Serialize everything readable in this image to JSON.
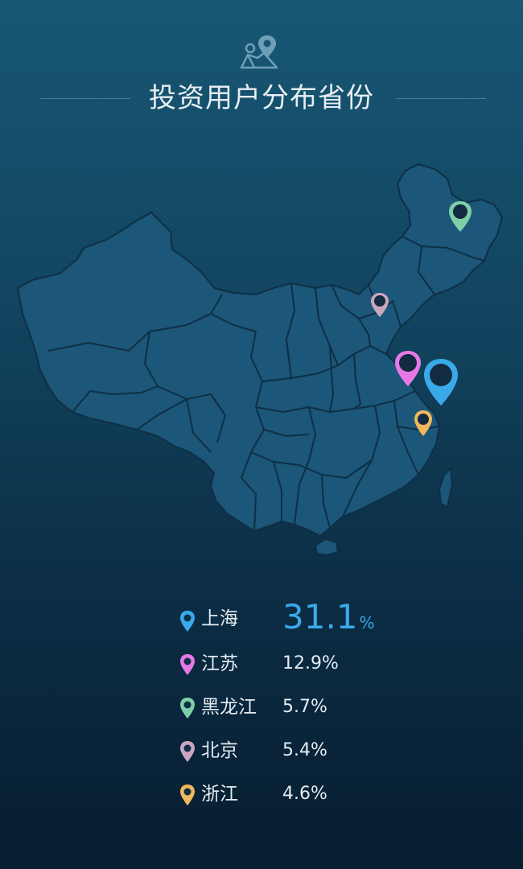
{
  "header": {
    "icon": "map-pin-icon",
    "title": "投资用户分布省份"
  },
  "colors": {
    "accent": "#3aa9ea",
    "map_fill": "#1c5678",
    "map_stroke": "#0e2f45"
  },
  "chart_data": {
    "type": "map",
    "title": "投资用户分布省份",
    "unit": "%",
    "series": [
      {
        "region": "上海",
        "value": 31.1,
        "color": "#3aa9ea"
      },
      {
        "region": "江苏",
        "value": 12.9,
        "color": "#e679e6"
      },
      {
        "region": "黑龙江",
        "value": 5.7,
        "color": "#7ecfa8"
      },
      {
        "region": "北京",
        "value": 5.4,
        "color": "#c9a7bf"
      },
      {
        "region": "浙江",
        "value": 4.6,
        "color": "#f0b85c"
      }
    ]
  },
  "legend": [
    {
      "name": "上海",
      "value": "31.1",
      "unit": "%"
    },
    {
      "name": "江苏",
      "value": "12.9%"
    },
    {
      "name": "黑龙江",
      "value": "5.7%"
    },
    {
      "name": "北京",
      "value": "5.4%"
    },
    {
      "name": "浙江",
      "value": "4.6%"
    }
  ]
}
